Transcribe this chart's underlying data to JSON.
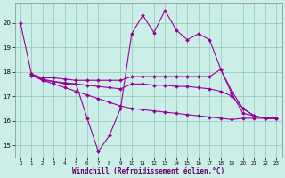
{
  "xlabel": "Windchill (Refroidissement éolien,°C)",
  "bg_color": "#cceee8",
  "grid_color": "#99ccbb",
  "line_color": "#990099",
  "xlim": [
    -0.5,
    23.5
  ],
  "ylim": [
    14.5,
    20.8
  ],
  "yticks": [
    15,
    16,
    17,
    18,
    19,
    20
  ],
  "xticks": [
    0,
    1,
    2,
    3,
    4,
    5,
    6,
    7,
    8,
    9,
    10,
    11,
    12,
    13,
    14,
    15,
    16,
    17,
    18,
    19,
    20,
    21,
    22,
    23
  ],
  "series": [
    {
      "x": [
        0,
        1,
        2,
        3,
        4,
        5,
        6,
        7,
        8,
        9,
        10,
        11,
        12,
        13,
        14,
        15,
        16,
        17,
        18,
        19,
        20,
        21,
        22,
        23
      ],
      "y": [
        20.0,
        17.9,
        17.7,
        17.6,
        17.5,
        17.5,
        16.1,
        14.75,
        15.4,
        16.5,
        19.55,
        20.3,
        19.6,
        20.5,
        19.7,
        19.3,
        19.55,
        19.3,
        18.1,
        17.1,
        16.3,
        16.2,
        16.1,
        16.1
      ]
    },
    {
      "x": [
        1,
        2,
        3,
        4,
        5,
        6,
        7,
        8,
        9,
        10,
        11,
        12,
        13,
        14,
        15,
        16,
        17,
        18,
        19,
        20,
        21,
        22,
        23
      ],
      "y": [
        17.9,
        17.75,
        17.75,
        17.7,
        17.65,
        17.65,
        17.65,
        17.65,
        17.65,
        17.8,
        17.8,
        17.8,
        17.8,
        17.8,
        17.8,
        17.8,
        17.8,
        18.1,
        17.2,
        16.5,
        16.2,
        16.1,
        16.1
      ]
    },
    {
      "x": [
        1,
        2,
        3,
        4,
        5,
        6,
        7,
        8,
        9,
        10,
        11,
        12,
        13,
        14,
        15,
        16,
        17,
        18,
        19,
        20,
        21,
        22,
        23
      ],
      "y": [
        17.85,
        17.65,
        17.6,
        17.55,
        17.5,
        17.45,
        17.4,
        17.35,
        17.3,
        17.5,
        17.5,
        17.45,
        17.45,
        17.4,
        17.4,
        17.35,
        17.3,
        17.2,
        17.0,
        16.5,
        16.2,
        16.1,
        16.1
      ]
    },
    {
      "x": [
        1,
        2,
        3,
        4,
        5,
        6,
        7,
        8,
        9,
        10,
        11,
        12,
        13,
        14,
        15,
        16,
        17,
        18,
        19,
        20,
        21,
        22,
        23
      ],
      "y": [
        17.9,
        17.65,
        17.5,
        17.35,
        17.2,
        17.05,
        16.9,
        16.75,
        16.6,
        16.5,
        16.45,
        16.4,
        16.35,
        16.3,
        16.25,
        16.2,
        16.15,
        16.1,
        16.05,
        16.1,
        16.1,
        16.1,
        16.1
      ]
    }
  ]
}
